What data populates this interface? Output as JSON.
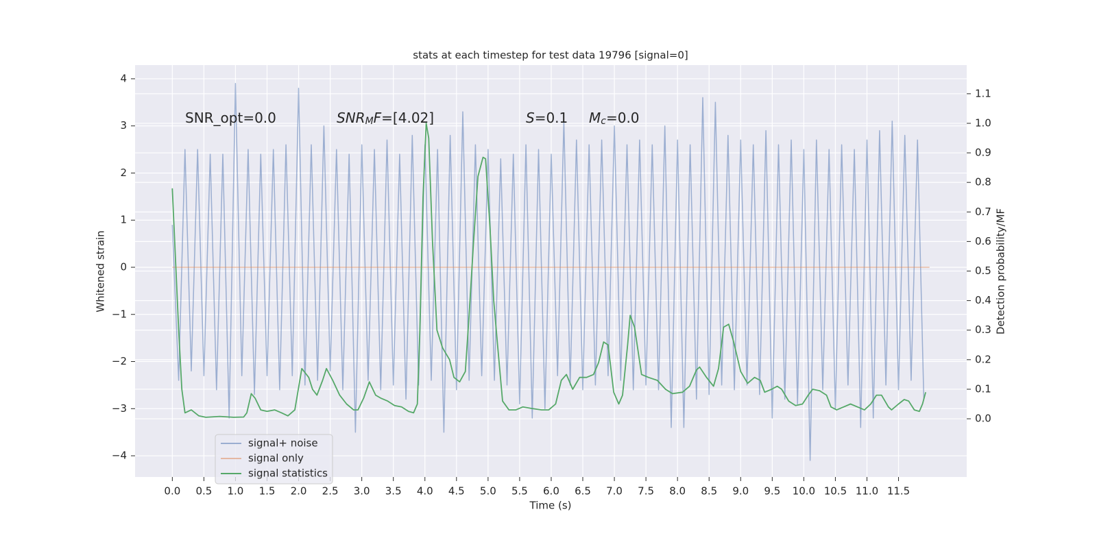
{
  "chart_data": {
    "type": "line",
    "title": "stats at each timestep for test data 19796 [signal=0]",
    "x_label": "Time (s)",
    "y_label": "Whitened strain",
    "y2_label": "Detection probability/MF",
    "grid": true,
    "legend": "lower left",
    "xlim": [
      -0.59,
      12.58
    ],
    "xticks": [
      {
        "value": 0,
        "label": "0.0"
      },
      0.5,
      {
        "value": 1,
        "label": "1.0"
      },
      1.5,
      {
        "value": 2,
        "label": "2.0"
      },
      2.5,
      {
        "value": 3,
        "label": "3.0"
      },
      3.5,
      {
        "value": 4,
        "label": "4.0"
      },
      4.5,
      {
        "value": 5,
        "label": "5.0"
      },
      5.5,
      {
        "value": 6,
        "label": "6.0"
      },
      6.5,
      {
        "value": 7,
        "label": "7.0"
      },
      7.5,
      {
        "value": 8,
        "label": "8.0"
      },
      8.5,
      {
        "value": 9,
        "label": "9.0"
      },
      9.5,
      {
        "value": 10,
        "label": "10.0"
      },
      10.5,
      {
        "value": 11,
        "label": "11.0"
      },
      11.5
    ],
    "ylim": [
      -4.45,
      4.29
    ],
    "yticks": [
      {
        "value": -4,
        "label": "−4"
      },
      {
        "value": -3,
        "label": "−3"
      },
      {
        "value": -2,
        "label": "−2"
      },
      {
        "value": -1,
        "label": "−1"
      },
      0,
      1,
      2,
      3,
      4
    ],
    "y2lim": [
      -0.197,
      1.197
    ],
    "y2ticks": [
      {
        "value": 0,
        "label": "0.0"
      },
      0.1,
      0.2,
      0.3,
      0.4,
      0.5,
      0.6,
      0.7,
      0.8,
      0.9,
      {
        "value": 1,
        "label": "1.0"
      },
      1.1
    ],
    "annotations": [
      [
        [
          "SNR_opt=0.0",
          "plain"
        ]
      ],
      [
        [
          "SNR",
          "italic"
        ],
        [
          "M",
          "sub"
        ],
        [
          "F",
          "italic"
        ],
        [
          "=[4.02]",
          "plain"
        ]
      ],
      [
        [
          "S",
          "italic"
        ],
        [
          "=0.1",
          "plain"
        ]
      ],
      [
        [
          "M",
          "italic"
        ],
        [
          "c",
          "sub"
        ],
        [
          "=0.0",
          "plain"
        ]
      ]
    ],
    "series": [
      {
        "name": "signal+ noise",
        "color": "#4c72b0",
        "opacity": 0.5,
        "x": [
          0.0,
          0.1,
          0.2,
          0.3,
          0.4,
          0.5,
          0.6,
          0.7,
          0.8,
          0.9,
          1.0,
          1.1,
          1.2,
          1.3,
          1.4,
          1.5,
          1.6,
          1.7,
          1.8,
          1.9,
          2.0,
          2.1,
          2.2,
          2.3,
          2.4,
          2.5,
          2.6,
          2.7,
          2.8,
          2.9,
          3.0,
          3.1,
          3.2,
          3.3,
          3.4,
          3.5,
          3.6,
          3.7,
          3.8,
          3.9,
          4.0,
          4.1,
          4.2,
          4.3,
          4.4,
          4.5,
          4.6,
          4.7,
          4.8,
          4.9,
          5.0,
          5.1,
          5.2,
          5.3,
          5.4,
          5.5,
          5.6,
          5.7,
          5.8,
          5.9,
          6.0,
          6.1,
          6.2,
          6.3,
          6.4,
          6.5,
          6.6,
          6.7,
          6.8,
          6.9,
          7.0,
          7.1,
          7.2,
          7.3,
          7.4,
          7.5,
          7.6,
          7.7,
          7.8,
          7.9,
          8.0,
          8.1,
          8.2,
          8.3,
          8.4,
          8.5,
          8.6,
          8.7,
          8.8,
          8.9,
          9.0,
          9.1,
          9.2,
          9.3,
          9.4,
          9.5,
          9.6,
          9.7,
          9.8,
          9.9,
          10.0,
          10.1,
          10.2,
          10.3,
          10.4,
          10.5,
          10.6,
          10.7,
          10.8,
          10.9,
          11.0,
          11.1,
          11.2,
          11.3,
          11.4,
          11.5,
          11.6,
          11.7,
          11.8,
          11.9
        ],
        "values": [
          0.9,
          -2.4,
          2.5,
          -2.2,
          2.5,
          -2.3,
          2.4,
          -2.6,
          2.4,
          -3.2,
          3.9,
          -2.3,
          2.5,
          -2.7,
          2.4,
          -2.3,
          2.5,
          -2.6,
          2.6,
          -2.3,
          3.8,
          -2.5,
          2.6,
          -2.4,
          3.0,
          -2.2,
          2.5,
          -2.6,
          2.4,
          -3.5,
          2.6,
          -2.4,
          2.5,
          -2.6,
          2.7,
          -2.5,
          2.4,
          -2.8,
          2.8,
          -2.5,
          2.6,
          -2.4,
          2.5,
          -3.5,
          2.8,
          -2.6,
          3.3,
          -2.4,
          2.6,
          -2.3,
          2.5,
          -2.4,
          2.3,
          -2.5,
          2.4,
          -2.9,
          2.6,
          -3.2,
          2.5,
          -3.0,
          2.4,
          -2.3,
          3.1,
          -2.5,
          2.7,
          -2.6,
          2.6,
          -2.5,
          2.7,
          -2.3,
          3.0,
          -2.4,
          2.6,
          -2.6,
          2.7,
          -2.5,
          2.6,
          -2.6,
          3.0,
          -3.4,
          2.7,
          -3.4,
          2.6,
          -2.8,
          3.6,
          -2.7,
          3.5,
          -2.5,
          2.8,
          -2.6,
          2.7,
          -2.5,
          2.6,
          -2.7,
          2.9,
          -3.2,
          2.6,
          -2.8,
          2.7,
          -2.9,
          2.5,
          -4.1,
          2.7,
          -2.6,
          2.5,
          -3.0,
          2.6,
          -2.5,
          2.5,
          -3.4,
          2.7,
          -3.2,
          2.9,
          -2.5,
          3.1,
          -2.6,
          2.8,
          -2.4,
          2.7,
          -2.8
        ]
      },
      {
        "name": "signal only",
        "color": "#dd8452",
        "opacity": 0.5,
        "x": [
          0.0,
          11.99
        ],
        "values": [
          0,
          0
        ]
      },
      {
        "name": "signal statistics",
        "color": "#55a868",
        "opacity": 1,
        "axis": "y2",
        "x": [
          0.0,
          0.1,
          0.15,
          0.2,
          0.3,
          0.42,
          0.53,
          0.75,
          0.97,
          1.13,
          1.18,
          1.25,
          1.31,
          1.4,
          1.5,
          1.62,
          1.73,
          1.83,
          1.94,
          2.05,
          2.16,
          2.22,
          2.29,
          2.38,
          2.44,
          2.54,
          2.65,
          2.76,
          2.87,
          2.94,
          3.03,
          3.12,
          3.22,
          3.3,
          3.41,
          3.52,
          3.63,
          3.74,
          3.82,
          3.88,
          3.92,
          3.97,
          4.02,
          4.06,
          4.12,
          4.19,
          4.28,
          4.39,
          4.46,
          4.55,
          4.64,
          4.7,
          4.77,
          4.84,
          4.92,
          4.96,
          5.03,
          5.09,
          5.15,
          5.23,
          5.33,
          5.44,
          5.55,
          5.69,
          5.85,
          5.96,
          6.07,
          6.16,
          6.24,
          6.34,
          6.45,
          6.56,
          6.67,
          6.75,
          6.83,
          6.9,
          6.99,
          7.07,
          7.13,
          7.21,
          7.25,
          7.32,
          7.43,
          7.54,
          7.68,
          7.81,
          7.92,
          8.08,
          8.19,
          8.3,
          8.35,
          8.46,
          8.57,
          8.65,
          8.73,
          8.81,
          8.89,
          9.0,
          9.11,
          9.22,
          9.31,
          9.38,
          9.49,
          9.58,
          9.65,
          9.76,
          9.87,
          9.98,
          10.07,
          10.14,
          10.25,
          10.36,
          10.43,
          10.52,
          10.63,
          10.74,
          10.85,
          10.96,
          11.06,
          11.15,
          11.23,
          11.34,
          11.39,
          11.5,
          11.59,
          11.66,
          11.75,
          11.83,
          11.88,
          11.93
        ],
        "values": [
          0.78,
          0.3,
          0.1,
          0.02,
          0.03,
          0.01,
          0.005,
          0.008,
          0.005,
          0.006,
          0.02,
          0.085,
          0.07,
          0.03,
          0.025,
          0.03,
          0.02,
          0.01,
          0.03,
          0.17,
          0.14,
          0.1,
          0.08,
          0.13,
          0.17,
          0.13,
          0.08,
          0.05,
          0.03,
          0.03,
          0.07,
          0.125,
          0.08,
          0.07,
          0.06,
          0.045,
          0.04,
          0.025,
          0.02,
          0.05,
          0.3,
          0.75,
          1.0,
          0.95,
          0.6,
          0.3,
          0.24,
          0.2,
          0.14,
          0.125,
          0.16,
          0.35,
          0.6,
          0.82,
          0.885,
          0.88,
          0.65,
          0.4,
          0.25,
          0.06,
          0.03,
          0.03,
          0.04,
          0.035,
          0.03,
          0.03,
          0.05,
          0.13,
          0.15,
          0.1,
          0.14,
          0.14,
          0.15,
          0.19,
          0.26,
          0.25,
          0.09,
          0.05,
          0.08,
          0.25,
          0.35,
          0.31,
          0.15,
          0.14,
          0.13,
          0.1,
          0.085,
          0.09,
          0.11,
          0.165,
          0.175,
          0.14,
          0.11,
          0.17,
          0.31,
          0.32,
          0.26,
          0.16,
          0.12,
          0.14,
          0.13,
          0.09,
          0.1,
          0.11,
          0.1,
          0.06,
          0.045,
          0.05,
          0.08,
          0.1,
          0.095,
          0.08,
          0.04,
          0.03,
          0.04,
          0.05,
          0.04,
          0.03,
          0.05,
          0.08,
          0.08,
          0.04,
          0.03,
          0.05,
          0.065,
          0.06,
          0.03,
          0.025,
          0.05,
          0.09
        ]
      }
    ]
  }
}
